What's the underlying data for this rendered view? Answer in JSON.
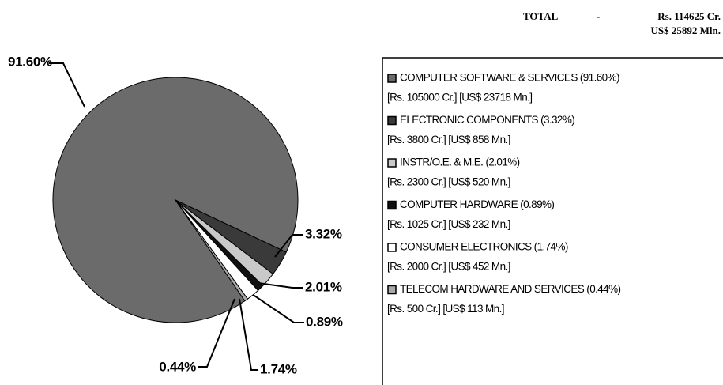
{
  "chart_data": {
    "type": "pie",
    "total": {
      "label": "TOTAL",
      "dash": "-",
      "rs": "Rs. 114625 Cr.",
      "usd": "US$ 25892 Mln."
    },
    "categories": [
      "COMPUTER SOFTWARE & SERVICES  (91.60%)",
      "ELECTRONIC COMPONENTS (3.32%)",
      "INSTR/O.E. & M.E. (2.01%)",
      "COMPUTER HARDWARE (0.89%)",
      "CONSUMER ELECTRONICS (1.74%)",
      "TELECOM HARDWARE AND SERVICES (0.44%)"
    ],
    "details": [
      "[Rs. 105000 Cr.] [US$ 23718 Mn.]",
      "[Rs. 3800 Cr.] [US$ 858 Mn.]",
      "[Rs. 2300 Cr.] [US$ 520 Mn.]",
      "[Rs. 1025 Cr.]  [US$ 232 Mn.]",
      "[Rs. 2000 Cr.] [US$ 452 Mn.]",
      "[Rs. 500 Cr.] [US$ 113 Mn.]"
    ],
    "values": [
      91.6,
      3.32,
      2.01,
      0.89,
      1.74,
      0.44
    ],
    "value_labels": [
      "91.60%",
      "3.32%",
      "2.01%",
      "0.89%",
      "1.74%",
      "0.44%"
    ],
    "colors": [
      "#6b6b6b",
      "#3a3a3a",
      "#c9c9c9",
      "#111111",
      "#ffffff",
      "#a9a9a9"
    ]
  }
}
